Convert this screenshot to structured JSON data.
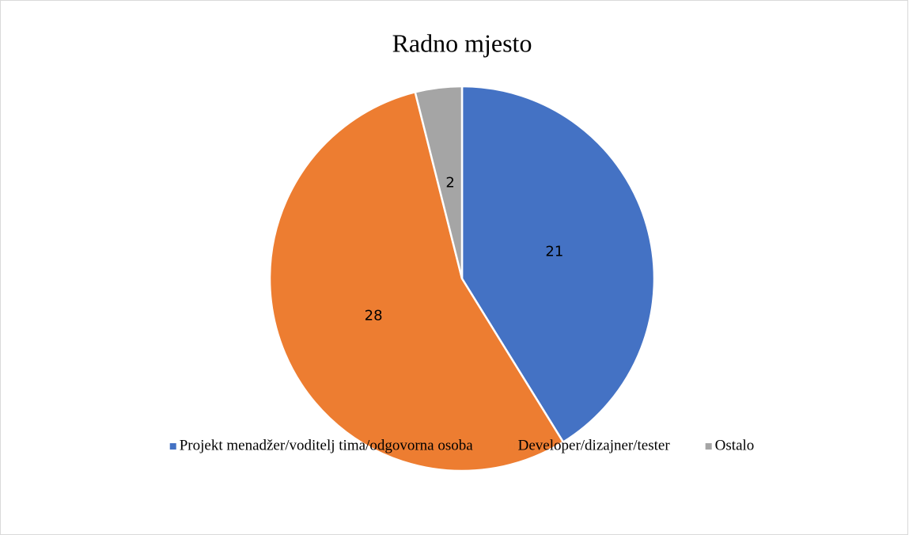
{
  "chart_data": {
    "type": "pie",
    "title": "Radno mjesto",
    "categories": [
      "Projekt menadžer/voditelj tima/odgovorna osoba",
      "Developer/dizajner/tester",
      "Ostalo"
    ],
    "values": [
      21,
      28,
      2
    ],
    "colors": [
      "#4472c4",
      "#ed7d31",
      "#a5a5a5"
    ],
    "legend": "bottom"
  }
}
